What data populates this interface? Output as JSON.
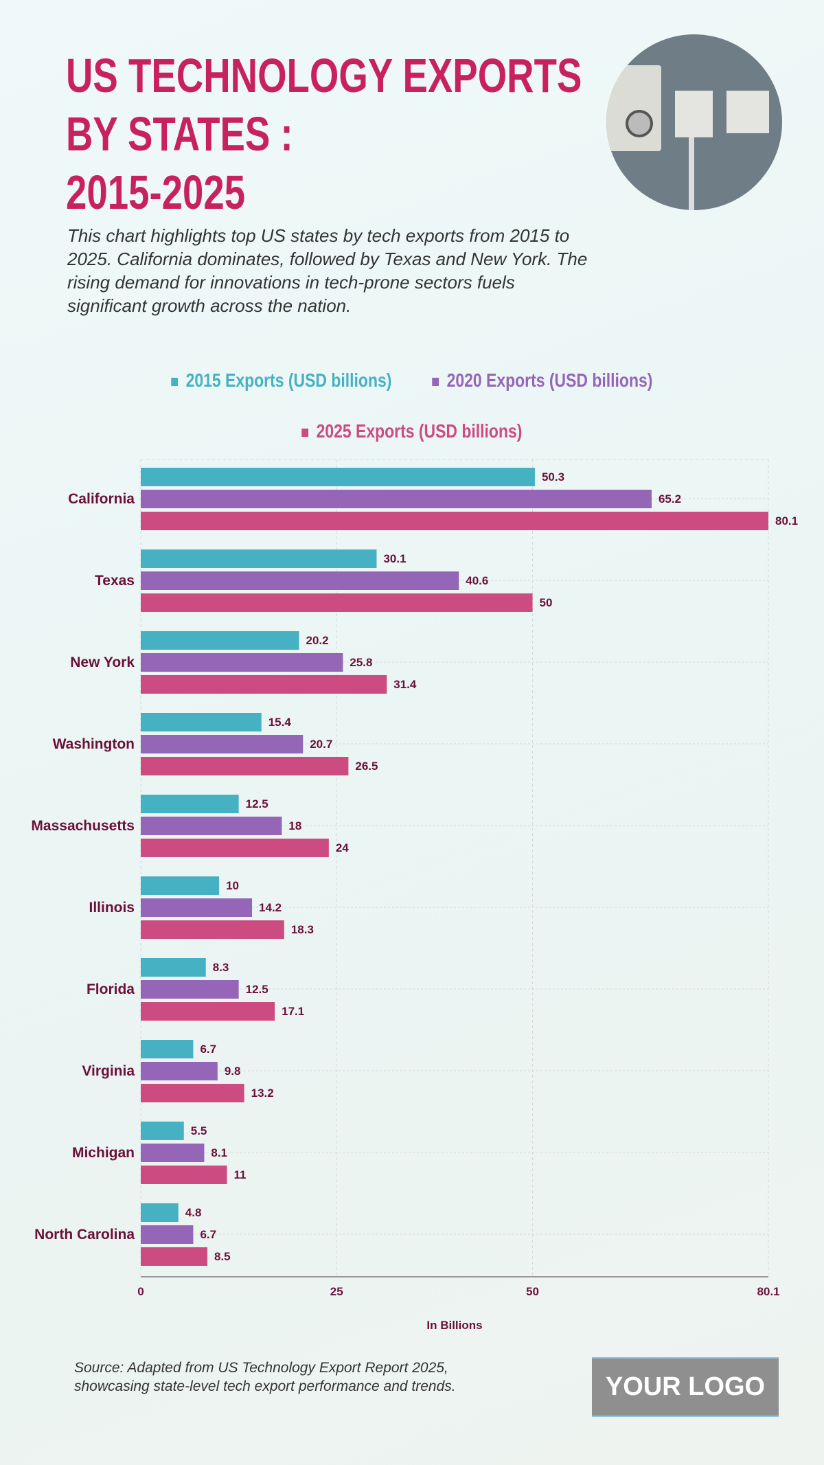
{
  "title_lines": [
    "US TECHNOLOGY EXPORTS",
    "BY STATES :",
    "2015-2025"
  ],
  "description": "This chart highlights top US states by tech exports from 2015 to 2025. California dominates, followed by Texas and New York. The rising demand for innovations in tech-prone sectors fuels significant growth across the nation.",
  "source": [
    "Source: Adapted from US Technology Export Report 2025,",
    "showcasing state-level tech export performance and trends."
  ],
  "logo": "YOUR LOGO",
  "chart_data": {
    "type": "bar",
    "orientation": "horizontal",
    "categories": [
      "California",
      "Texas",
      "New York",
      "Washington",
      "Massachusetts",
      "Illinois",
      "Florida",
      "Virginia",
      "Michigan",
      "North Carolina"
    ],
    "series": [
      {
        "name": "2015 Exports (USD billions)",
        "color": "#45b1c3",
        "values": [
          50.3,
          30.1,
          20.2,
          15.4,
          12.5,
          10,
          8.3,
          6.7,
          5.5,
          4.8
        ]
      },
      {
        "name": "2020 Exports (USD billions)",
        "color": "#9565b8",
        "values": [
          65.2,
          40.6,
          25.8,
          20.7,
          18,
          14.2,
          12.5,
          9.8,
          8.1,
          6.7
        ]
      },
      {
        "name": "2025 Exports (USD billions)",
        "color": "#cc4b80",
        "values": [
          80.1,
          50,
          31.4,
          26.5,
          24,
          18.3,
          17.1,
          13.2,
          11,
          8.5
        ]
      }
    ],
    "xlabel": "In Billions",
    "xlim": [
      0,
      80.1
    ],
    "xticks": [
      "0",
      "25",
      "50",
      "80.1"
    ],
    "grid": true,
    "legend": "top"
  }
}
